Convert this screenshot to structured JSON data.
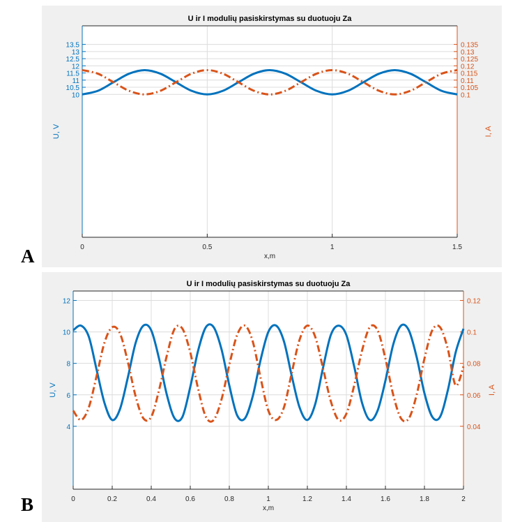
{
  "panels": [
    {
      "letter": "A"
    },
    {
      "letter": "B"
    }
  ],
  "colors": {
    "u_color": "#0072BD",
    "i_color": "#D95319",
    "figure_bg": "#F0F0F0",
    "axes_bg": "#FFFFFF",
    "grid": "#DCDCDC"
  },
  "chart_data": [
    {
      "type": "line",
      "title": "U ir I modulių pasiskirstymas su duotuoju Za",
      "xlabel": "x,m",
      "ylabel_left": "U, V",
      "ylabel_right": "I, A",
      "xlim": [
        0,
        1.5
      ],
      "ylim_left": [
        0,
        14.8
      ],
      "ylim_right": [
        0,
        0.148
      ],
      "xticks": [
        0,
        0.5,
        1,
        1.5
      ],
      "xtick_labels": [
        "0",
        "0.5",
        "1",
        "1.5"
      ],
      "yticks_left": [
        10,
        10.5,
        11,
        11.5,
        12,
        12.5,
        13,
        13.5
      ],
      "ytick_labels_left": [
        "10",
        "10.5",
        "11",
        "11.5",
        "12",
        "12.5",
        "13",
        "13.5"
      ],
      "yticks_right": [
        0.1,
        0.105,
        0.11,
        0.115,
        0.12,
        0.125,
        0.13,
        0.135
      ],
      "ytick_labels_right": [
        "0.1",
        "0.105",
        "0.11",
        "0.115",
        "0.12",
        "0.125",
        "0.13",
        "0.135"
      ],
      "grid": true,
      "series": [
        {
          "axis": "left",
          "style": "solid",
          "x": [
            0,
            0.0625,
            0.125,
            0.1875,
            0.25,
            0.3125,
            0.375,
            0.4375,
            0.5,
            0.5625,
            0.625,
            0.6875,
            0.75,
            0.8125,
            0.875,
            0.9375,
            1.0,
            1.0625,
            1.125,
            1.1875,
            1.25,
            1.3125,
            1.375,
            1.4375,
            1.5
          ],
          "y": [
            10.0,
            10.25,
            10.85,
            11.45,
            11.7,
            11.45,
            10.85,
            10.25,
            10.0,
            10.25,
            10.85,
            11.45,
            11.7,
            11.45,
            10.85,
            10.25,
            10.0,
            10.25,
            10.85,
            11.45,
            11.7,
            11.45,
            10.85,
            10.25,
            10.0
          ]
        },
        {
          "axis": "right",
          "style": "dashdot",
          "x": [
            0,
            0.0625,
            0.125,
            0.1875,
            0.25,
            0.3125,
            0.375,
            0.4375,
            0.5,
            0.5625,
            0.625,
            0.6875,
            0.75,
            0.8125,
            0.875,
            0.9375,
            1.0,
            1.0625,
            1.125,
            1.1875,
            1.25,
            1.3125,
            1.375,
            1.4375,
            1.5
          ],
          "y": [
            0.117,
            0.1145,
            0.1085,
            0.1025,
            0.1,
            0.1025,
            0.1085,
            0.1145,
            0.117,
            0.1145,
            0.1085,
            0.1025,
            0.1,
            0.1025,
            0.1085,
            0.1145,
            0.117,
            0.1145,
            0.1085,
            0.1025,
            0.1,
            0.1025,
            0.1085,
            0.1145,
            0.117
          ]
        }
      ]
    },
    {
      "type": "line",
      "title": "U ir I modulių pasiskirstymas su duotuoju Za",
      "xlabel": "x,m",
      "ylabel_left": "U, V",
      "ylabel_right": "I, A",
      "xlim": [
        0,
        2
      ],
      "ylim_left": [
        0,
        12.6
      ],
      "ylim_right": [
        0,
        0.126
      ],
      "xticks": [
        0,
        0.2,
        0.4,
        0.6,
        0.8,
        1,
        1.2,
        1.4,
        1.6,
        1.8,
        2
      ],
      "xtick_labels": [
        "0",
        "0.2",
        "0.4",
        "0.6",
        "0.8",
        "1",
        "1.2",
        "1.4",
        "1.6",
        "1.8",
        "2"
      ],
      "yticks_left": [
        4,
        6,
        8,
        10,
        12
      ],
      "ytick_labels_left": [
        "4",
        "6",
        "8",
        "10",
        "12"
      ],
      "yticks_right": [
        0.04,
        0.06,
        0.08,
        0.1,
        0.12
      ],
      "ytick_labels_right": [
        "0.04",
        "0.06",
        "0.08",
        "0.1",
        "0.12"
      ],
      "grid": true,
      "series": [
        {
          "axis": "left",
          "style": "solid",
          "x": [
            0,
            0.04,
            0.08,
            0.12,
            0.16,
            0.2,
            0.24,
            0.28,
            0.32,
            0.36,
            0.4,
            0.44,
            0.48,
            0.52,
            0.56,
            0.6,
            0.64,
            0.68,
            0.72,
            0.76,
            0.8,
            0.84,
            0.88,
            0.92,
            0.96,
            1.0,
            1.04,
            1.08,
            1.12,
            1.16,
            1.2,
            1.24,
            1.28,
            1.32,
            1.36,
            1.4,
            1.44,
            1.48,
            1.52,
            1.56,
            1.6,
            1.64,
            1.68,
            1.72,
            1.76,
            1.8,
            1.84,
            1.88,
            1.92,
            1.96,
            2.0
          ],
          "y": [
            10.1,
            10.4,
            9.7,
            7.6,
            5.5,
            4.4,
            5.1,
            7.1,
            9.3,
            10.4,
            10.1,
            8.3,
            6.0,
            4.5,
            4.6,
            6.5,
            8.8,
            10.3,
            10.3,
            8.9,
            6.6,
            4.7,
            4.5,
            5.9,
            8.2,
            10.0,
            10.4,
            9.4,
            7.2,
            5.2,
            4.4,
            5.4,
            7.7,
            9.8,
            10.4,
            9.8,
            7.8,
            5.5,
            4.4,
            5.0,
            6.9,
            9.2,
            10.4,
            10.1,
            8.4,
            6.1,
            4.6,
            4.6,
            6.3,
            8.7,
            10.2
          ]
        },
        {
          "axis": "right",
          "style": "dashdot",
          "x": [
            0,
            0.04,
            0.08,
            0.12,
            0.16,
            0.2,
            0.24,
            0.28,
            0.32,
            0.36,
            0.4,
            0.44,
            0.48,
            0.52,
            0.56,
            0.6,
            0.64,
            0.68,
            0.72,
            0.76,
            0.8,
            0.84,
            0.88,
            0.92,
            0.96,
            1.0,
            1.04,
            1.08,
            1.12,
            1.16,
            1.2,
            1.24,
            1.28,
            1.32,
            1.36,
            1.4,
            1.44,
            1.48,
            1.52,
            1.56,
            1.6,
            1.64,
            1.68,
            1.72,
            1.76,
            1.8,
            1.84,
            1.88,
            1.92,
            1.96,
            2.0
          ],
          "y": [
            0.05,
            0.044,
            0.052,
            0.072,
            0.093,
            0.103,
            0.099,
            0.081,
            0.059,
            0.045,
            0.046,
            0.063,
            0.085,
            0.102,
            0.102,
            0.087,
            0.064,
            0.046,
            0.044,
            0.057,
            0.079,
            0.098,
            0.104,
            0.094,
            0.071,
            0.05,
            0.044,
            0.052,
            0.074,
            0.095,
            0.104,
            0.097,
            0.077,
            0.056,
            0.044,
            0.048,
            0.066,
            0.088,
            0.103,
            0.101,
            0.083,
            0.06,
            0.045,
            0.045,
            0.06,
            0.083,
            0.101,
            0.103,
            0.089,
            0.066,
            0.078
          ]
        }
      ]
    }
  ]
}
